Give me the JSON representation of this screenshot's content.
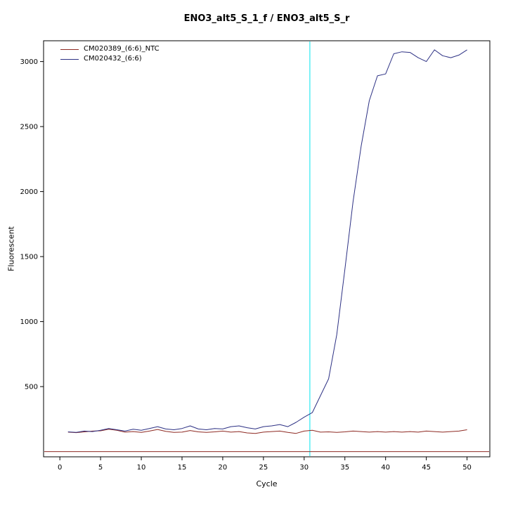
{
  "chart_data": {
    "type": "line",
    "title": "ENO3_alt5_S_1_f / ENO3_alt5_S_r",
    "xlabel": "Cycle",
    "ylabel": "Fluorescent",
    "xlim": [
      -2,
      52.8
    ],
    "ylim": [
      -40,
      3160
    ],
    "x_ticks": [
      0,
      5,
      10,
      15,
      20,
      25,
      30,
      35,
      40,
      45,
      50
    ],
    "y_ticks": [
      500,
      1000,
      1500,
      2000,
      2500,
      3000
    ],
    "grid": false,
    "legend_position": "top-left",
    "threshold_cycle_line": {
      "x": 30.7,
      "color": "#00e5f0"
    },
    "baseline_line": {
      "y": 0,
      "color": "#8e2a23"
    },
    "x": [
      1,
      2,
      3,
      4,
      5,
      6,
      7,
      8,
      9,
      10,
      11,
      12,
      13,
      14,
      15,
      16,
      17,
      18,
      19,
      20,
      21,
      22,
      23,
      24,
      25,
      26,
      27,
      28,
      29,
      30,
      31,
      32,
      33,
      34,
      35,
      36,
      37,
      38,
      39,
      40,
      41,
      42,
      43,
      44,
      45,
      46,
      47,
      48,
      49,
      50
    ],
    "series": [
      {
        "name": "CM020389_(6:6)_NTC",
        "color": "#8e2a23",
        "values": [
          150,
          146,
          152,
          158,
          160,
          172,
          164,
          150,
          154,
          148,
          158,
          170,
          156,
          148,
          150,
          162,
          152,
          148,
          152,
          158,
          150,
          154,
          144,
          140,
          150,
          154,
          158,
          148,
          140,
          158,
          164,
          150,
          152,
          148,
          152,
          158,
          154,
          150,
          154,
          150,
          154,
          150,
          154,
          150,
          158,
          154,
          150,
          154,
          158,
          168
        ]
      },
      {
        "name": "CM020432_(6:6)",
        "color": "#2d3184",
        "values": [
          152,
          148,
          158,
          154,
          164,
          178,
          168,
          158,
          172,
          164,
          178,
          192,
          174,
          168,
          178,
          198,
          174,
          168,
          178,
          174,
          192,
          198,
          184,
          174,
          192,
          198,
          208,
          192,
          225,
          265,
          300,
          430,
          560,
          900,
          1400,
          1920,
          2350,
          2700,
          2890,
          2905,
          3060,
          3075,
          3070,
          3030,
          3000,
          3090,
          3045,
          3030,
          3050,
          3090
        ]
      }
    ]
  }
}
